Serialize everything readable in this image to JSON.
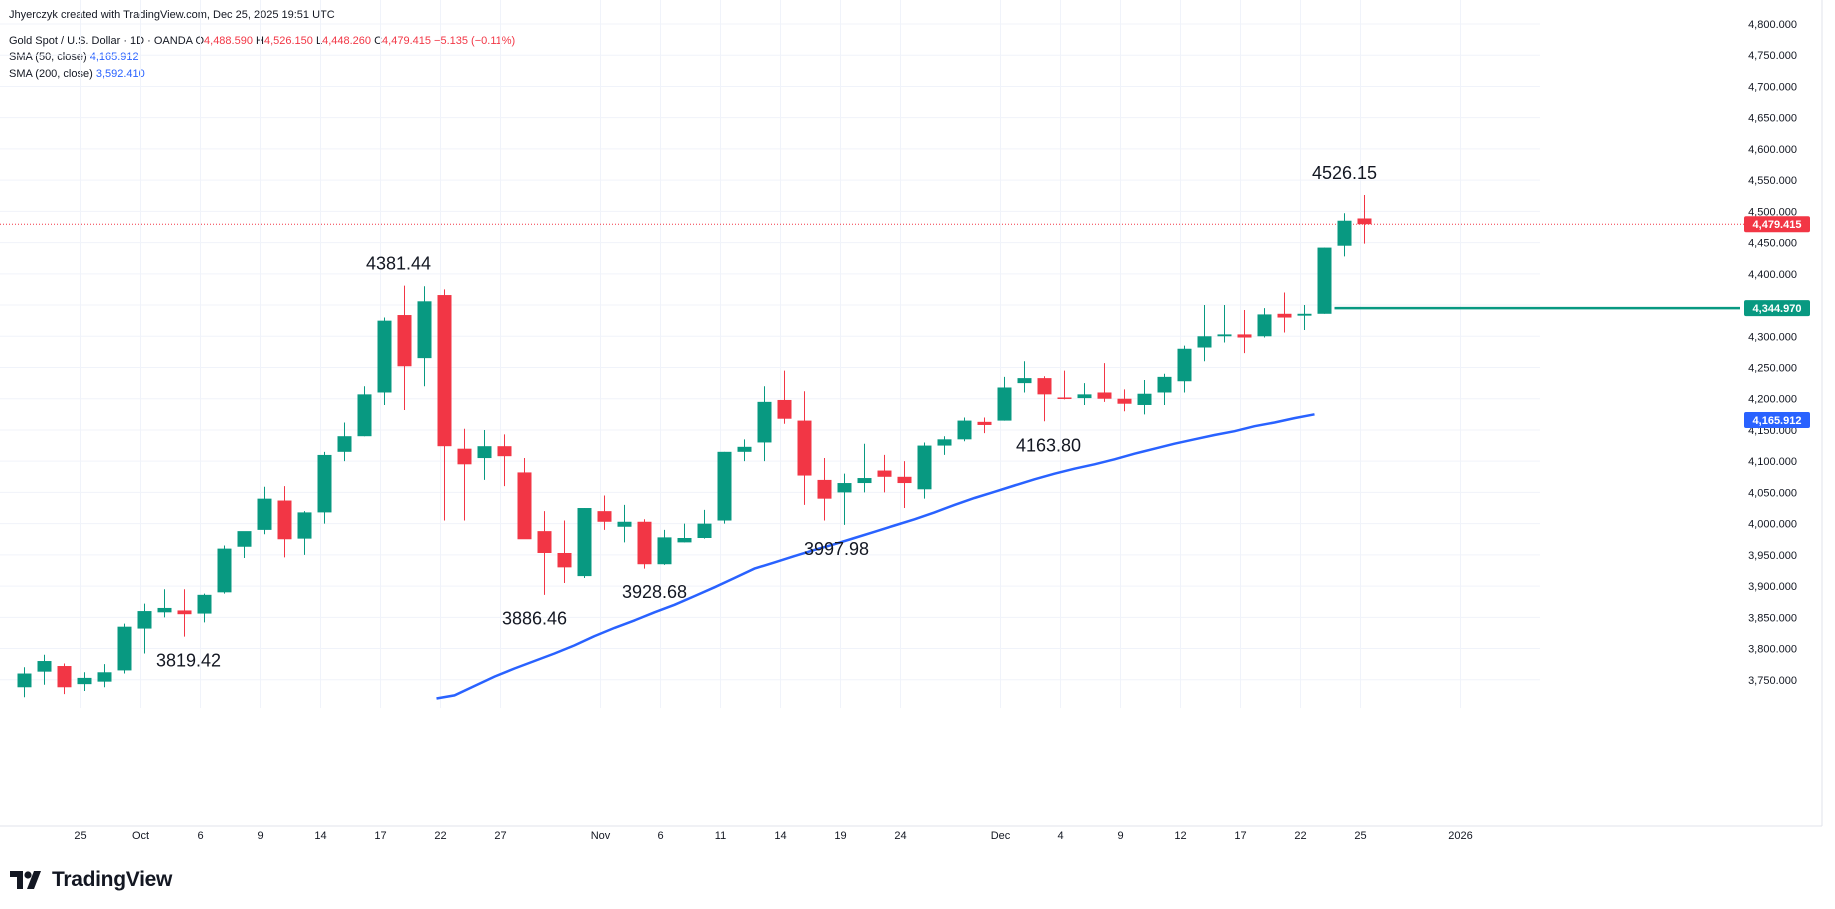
{
  "header": {
    "credit": "Jhyerczyk created with TradingView.com, Dec 25, 2025 19:51 UTC",
    "symbol": "Gold Spot / U.S. Dollar · 1D · OANDA",
    "o_label": "O",
    "o_value": "4,488.590",
    "h_label": "H",
    "h_value": "4,526.150",
    "l_label": "L",
    "l_value": "4,448.260",
    "c_label": "C",
    "c_value": "4,479.415",
    "change": "−5.135 (−0.11%)",
    "sma50_label": "SMA (50, close)",
    "sma50_value": "4,165.912",
    "sma200_label": "SMA (200, close)",
    "sma200_value": "3,592.410"
  },
  "logo": {
    "text": "TradingView",
    "icon": "tradingview-logo-icon"
  },
  "colors": {
    "up": "#089981",
    "down": "#f23645",
    "sma": "#2962ff",
    "grid": "#f0f3fa",
    "axis_text": "#131722",
    "level": "#089981"
  },
  "chart_data": {
    "type": "candlestick",
    "title": "Gold Spot / U.S. Dollar · 1D · OANDA",
    "ylim": [
      3700,
      4800
    ],
    "y_ticks": [
      "3,750.000",
      "3,800.000",
      "3,850.000",
      "3,900.000",
      "3,950.000",
      "4,000.000",
      "4,050.000",
      "4,100.000",
      "4,150.000",
      "4,200.000",
      "4,250.000",
      "4,300.000",
      "4,350.000",
      "4,400.000",
      "4,450.000",
      "4,500.000",
      "4,550.000",
      "4,600.000",
      "4,650.000",
      "4,700.000",
      "4,750.000",
      "4,800.000"
    ],
    "y_tick_values": [
      3750,
      3800,
      3850,
      3900,
      3950,
      4000,
      4050,
      4100,
      4150,
      4200,
      4250,
      4300,
      4350,
      4400,
      4450,
      4500,
      4550,
      4600,
      4650,
      4700,
      4750,
      4800
    ],
    "x_ticks": [
      {
        "label": "25",
        "index": 2.8
      },
      {
        "label": "Oct",
        "index": 5.8
      },
      {
        "label": "6",
        "index": 8.8
      },
      {
        "label": "9",
        "index": 11.8
      },
      {
        "label": "14",
        "index": 14.8
      },
      {
        "label": "17",
        "index": 17.8
      },
      {
        "label": "22",
        "index": 20.8
      },
      {
        "label": "27",
        "index": 23.8
      },
      {
        "label": "Nov",
        "index": 28.8
      },
      {
        "label": "6",
        "index": 31.8
      },
      {
        "label": "11",
        "index": 34.8
      },
      {
        "label": "14",
        "index": 37.8
      },
      {
        "label": "19",
        "index": 40.8
      },
      {
        "label": "24",
        "index": 43.8
      },
      {
        "label": "Dec",
        "index": 48.8
      },
      {
        "label": "4",
        "index": 51.8
      },
      {
        "label": "9",
        "index": 54.8
      },
      {
        "label": "12",
        "index": 57.8
      },
      {
        "label": "17",
        "index": 60.8
      },
      {
        "label": "22",
        "index": 63.8
      },
      {
        "label": "25",
        "index": 66.8
      },
      {
        "label": "2026",
        "index": 71.8
      }
    ],
    "candles": [
      {
        "o": 3738,
        "h": 3770,
        "l": 3722,
        "c": 3760
      },
      {
        "o": 3763,
        "h": 3790,
        "l": 3742,
        "c": 3780
      },
      {
        "o": 3772,
        "h": 3776,
        "l": 3727,
        "c": 3738
      },
      {
        "o": 3743,
        "h": 3762,
        "l": 3732,
        "c": 3753
      },
      {
        "o": 3747,
        "h": 3775,
        "l": 3738,
        "c": 3762
      },
      {
        "o": 3765,
        "h": 3840,
        "l": 3760,
        "c": 3835
      },
      {
        "o": 3832,
        "h": 3872,
        "l": 3792,
        "c": 3860
      },
      {
        "o": 3858,
        "h": 3895,
        "l": 3850,
        "c": 3865
      },
      {
        "o": 3861,
        "h": 3895,
        "l": 3819,
        "c": 3855
      },
      {
        "o": 3856,
        "h": 3888,
        "l": 3842,
        "c": 3886
      },
      {
        "o": 3890,
        "h": 3965,
        "l": 3888,
        "c": 3960
      },
      {
        "o": 3963,
        "h": 3985,
        "l": 3945,
        "c": 3988
      },
      {
        "o": 3990,
        "h": 4059,
        "l": 3983,
        "c": 4040
      },
      {
        "o": 4037,
        "h": 4060,
        "l": 3946,
        "c": 3975
      },
      {
        "o": 3976,
        "h": 4020,
        "l": 3950,
        "c": 4018
      },
      {
        "o": 4018,
        "h": 4115,
        "l": 4000,
        "c": 4110
      },
      {
        "o": 4115,
        "h": 4162,
        "l": 4100,
        "c": 4140
      },
      {
        "o": 4140,
        "h": 4220,
        "l": 4140,
        "c": 4207
      },
      {
        "o": 4210,
        "h": 4330,
        "l": 4190,
        "c": 4325
      },
      {
        "o": 4334,
        "h": 4381,
        "l": 4182,
        "c": 4252
      },
      {
        "o": 4265,
        "h": 4380,
        "l": 4220,
        "c": 4356
      },
      {
        "o": 4366,
        "h": 4375,
        "l": 4005,
        "c": 4124
      },
      {
        "o": 4120,
        "h": 4152,
        "l": 4005,
        "c": 4095
      },
      {
        "o": 4105,
        "h": 4150,
        "l": 4070,
        "c": 4124
      },
      {
        "o": 4124,
        "h": 4143,
        "l": 4060,
        "c": 4108
      },
      {
        "o": 4082,
        "h": 4105,
        "l": 3980,
        "c": 3975
      },
      {
        "o": 3988,
        "h": 4020,
        "l": 3886,
        "c": 3953
      },
      {
        "o": 3953,
        "h": 4005,
        "l": 3905,
        "c": 3930
      },
      {
        "o": 3916,
        "h": 4025,
        "l": 3913,
        "c": 4025
      },
      {
        "o": 4020,
        "h": 4045,
        "l": 3990,
        "c": 4003
      },
      {
        "o": 3995,
        "h": 4030,
        "l": 3970,
        "c": 4003
      },
      {
        "o": 4003,
        "h": 4007,
        "l": 3928,
        "c": 3935
      },
      {
        "o": 3935,
        "h": 3990,
        "l": 3934,
        "c": 3978
      },
      {
        "o": 3970,
        "h": 4000,
        "l": 3970,
        "c": 3977
      },
      {
        "o": 3977,
        "h": 4022,
        "l": 3976,
        "c": 4000
      },
      {
        "o": 4005,
        "h": 4115,
        "l": 4000,
        "c": 4115
      },
      {
        "o": 4115,
        "h": 4135,
        "l": 4100,
        "c": 4123
      },
      {
        "o": 4130,
        "h": 4220,
        "l": 4100,
        "c": 4195
      },
      {
        "o": 4198,
        "h": 4245,
        "l": 4160,
        "c": 4168
      },
      {
        "o": 4165,
        "h": 4212,
        "l": 4030,
        "c": 4077
      },
      {
        "o": 4070,
        "h": 4105,
        "l": 4005,
        "c": 4040
      },
      {
        "o": 4050,
        "h": 4080,
        "l": 3998,
        "c": 4065
      },
      {
        "o": 4065,
        "h": 4128,
        "l": 4050,
        "c": 4073
      },
      {
        "o": 4085,
        "h": 4110,
        "l": 4050,
        "c": 4075
      },
      {
        "o": 4075,
        "h": 4100,
        "l": 4025,
        "c": 4065
      },
      {
        "o": 4055,
        "h": 4130,
        "l": 4040,
        "c": 4125
      },
      {
        "o": 4125,
        "h": 4140,
        "l": 4110,
        "c": 4135
      },
      {
        "o": 4135,
        "h": 4170,
        "l": 4132,
        "c": 4165
      },
      {
        "o": 4163,
        "h": 4170,
        "l": 4145,
        "c": 4158
      },
      {
        "o": 4165,
        "h": 4235,
        "l": 4165,
        "c": 4218
      },
      {
        "o": 4225,
        "h": 4260,
        "l": 4210,
        "c": 4233
      },
      {
        "o": 4233,
        "h": 4236,
        "l": 4164,
        "c": 4207
      },
      {
        "o": 4202,
        "h": 4245,
        "l": 4199,
        "c": 4201
      },
      {
        "o": 4201,
        "h": 4225,
        "l": 4190,
        "c": 4207
      },
      {
        "o": 4210,
        "h": 4257,
        "l": 4195,
        "c": 4200
      },
      {
        "o": 4200,
        "h": 4215,
        "l": 4180,
        "c": 4192
      },
      {
        "o": 4190,
        "h": 4230,
        "l": 4175,
        "c": 4208
      },
      {
        "o": 4210,
        "h": 4240,
        "l": 4190,
        "c": 4235
      },
      {
        "o": 4228,
        "h": 4285,
        "l": 4210,
        "c": 4280
      },
      {
        "o": 4282,
        "h": 4350,
        "l": 4260,
        "c": 4300
      },
      {
        "o": 4300,
        "h": 4350,
        "l": 4290,
        "c": 4303
      },
      {
        "o": 4303,
        "h": 4342,
        "l": 4273,
        "c": 4298
      },
      {
        "o": 4300,
        "h": 4345,
        "l": 4298,
        "c": 4335
      },
      {
        "o": 4336,
        "h": 4370,
        "l": 4306,
        "c": 4330
      },
      {
        "o": 4333,
        "h": 4350,
        "l": 4310,
        "c": 4336
      },
      {
        "o": 4336,
        "h": 4442,
        "l": 4336,
        "c": 4442
      },
      {
        "o": 4445,
        "h": 4497,
        "l": 4428,
        "c": 4485
      },
      {
        "o": 4488.59,
        "h": 4526.15,
        "l": 4448.26,
        "c": 4479.415
      }
    ],
    "sma50": {
      "name": "SMA (50, close)",
      "points": [
        [
          20.6,
          3720
        ],
        [
          21.5,
          3725
        ],
        [
          22.5,
          3740
        ],
        [
          23.5,
          3755
        ],
        [
          24.5,
          3768
        ],
        [
          25.5,
          3780
        ],
        [
          26.5,
          3792
        ],
        [
          27.5,
          3805
        ],
        [
          28.5,
          3820
        ],
        [
          29.5,
          3833
        ],
        [
          30.5,
          3845
        ],
        [
          31.5,
          3858
        ],
        [
          32.5,
          3870
        ],
        [
          33.5,
          3884
        ],
        [
          34.5,
          3898
        ],
        [
          35.5,
          3913
        ],
        [
          36.5,
          3928
        ],
        [
          37.5,
          3938
        ],
        [
          38.5,
          3948
        ],
        [
          39.5,
          3958
        ],
        [
          40.5,
          3967
        ],
        [
          41.5,
          3977
        ],
        [
          42.5,
          3987
        ],
        [
          43.5,
          3997
        ],
        [
          44.5,
          4007
        ],
        [
          45.5,
          4018
        ],
        [
          46.5,
          4030
        ],
        [
          47.5,
          4041
        ],
        [
          48.5,
          4051
        ],
        [
          49.5,
          4061
        ],
        [
          50.5,
          4071
        ],
        [
          51.5,
          4080
        ],
        [
          52.5,
          4088
        ],
        [
          53.5,
          4095
        ],
        [
          54.5,
          4103
        ],
        [
          55.5,
          4112
        ],
        [
          56.5,
          4120
        ],
        [
          57.5,
          4128
        ],
        [
          58.5,
          4135
        ],
        [
          59.5,
          4142
        ],
        [
          60.5,
          4148
        ],
        [
          61.5,
          4156
        ],
        [
          62.5,
          4162
        ],
        [
          63.5,
          4169
        ],
        [
          64.5,
          4175
        ]
      ]
    },
    "level_line": {
      "value": 4344.97,
      "from_index": 65.5,
      "label": "4,344.970"
    },
    "last_price": {
      "value": 4479.415,
      "label": "4,479.415"
    },
    "sma_price": {
      "value": 4165.912,
      "label": "4,165.912"
    },
    "annotations": [
      {
        "text": "4526.15",
        "index": 66.0,
        "value": 4526.15,
        "pos": "above"
      },
      {
        "text": "4381.44",
        "index": 18.7,
        "value": 4381.44,
        "pos": "above"
      },
      {
        "text": "3819.42",
        "index": 8.2,
        "value": 3819.42,
        "pos": "below"
      },
      {
        "text": "3886.46",
        "index": 25.5,
        "value": 3886.46,
        "pos": "below"
      },
      {
        "text": "3928.68",
        "index": 31.5,
        "value": 3928.68,
        "pos": "below"
      },
      {
        "text": "3997.98",
        "index": 40.6,
        "value": 3997.98,
        "pos": "below"
      },
      {
        "text": "4163.80",
        "index": 51.2,
        "value": 4163.8,
        "pos": "below"
      }
    ]
  }
}
